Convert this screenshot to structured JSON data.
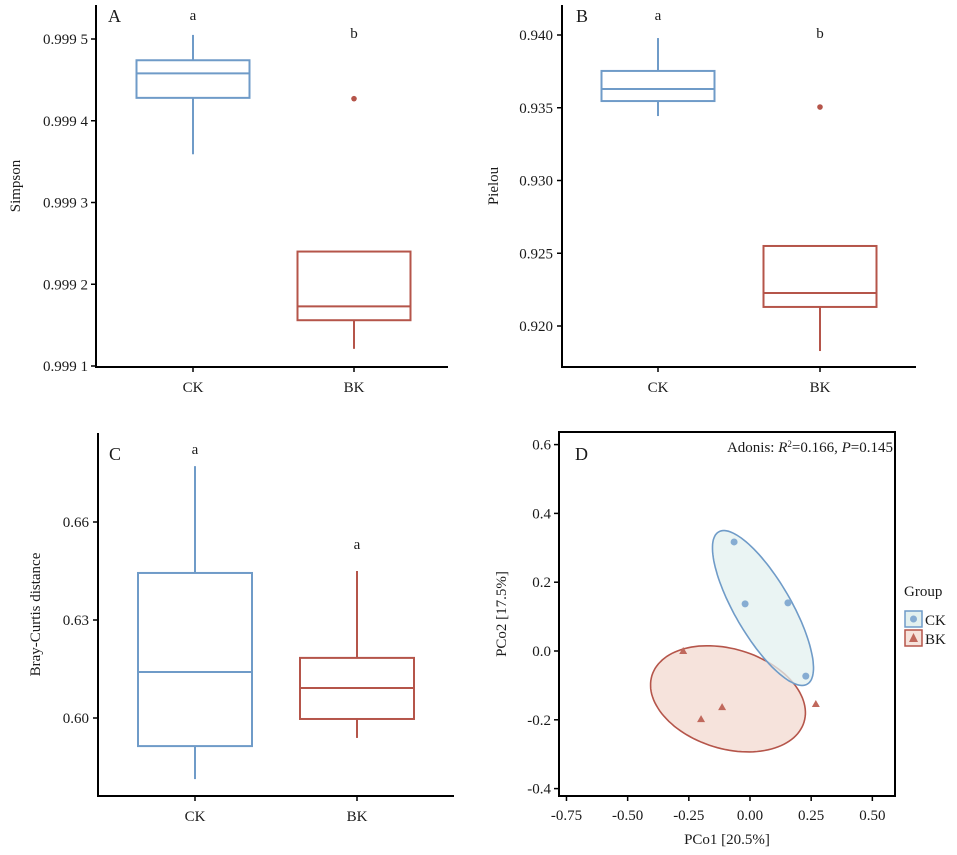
{
  "colors": {
    "CK": "#6f9bc8",
    "BK": "#b5554a",
    "CK_fill": "#e3f0ef",
    "BK_fill": "#f6e3dc",
    "CK_point": "#86acd2",
    "BK_point": "#c0685c"
  },
  "chart_data": [
    {
      "panel": "A",
      "type": "box",
      "ylabel": "Simpson",
      "xlabel": "",
      "categories": [
        "CK",
        "BK"
      ],
      "yticks": [
        0.9991,
        0.9992,
        0.9993,
        0.9994,
        0.9995
      ],
      "ytick_labels": [
        "0.999 1",
        "0.999 2",
        "0.999 3",
        "0.999 4",
        "0.999 5"
      ],
      "ylim": [
        0.99909,
        0.999542
      ],
      "boxes": [
        {
          "group": "CK",
          "whisker_low": 0.999359,
          "q1": 0.999428,
          "median": 0.999458,
          "q3": 0.999474,
          "whisker_high": 0.999505,
          "outliers": [],
          "sig": "a"
        },
        {
          "group": "BK",
          "whisker_low": 0.999121,
          "q1": 0.999156,
          "median": 0.999173,
          "q3": 0.99924,
          "whisker_high": 0.99924,
          "outliers": [
            0.999427
          ],
          "sig": "b"
        }
      ]
    },
    {
      "panel": "B",
      "type": "box",
      "ylabel": "Pielou",
      "xlabel": "",
      "categories": [
        "CK",
        "BK"
      ],
      "yticks": [
        0.92,
        0.925,
        0.93,
        0.935,
        0.94
      ],
      "ytick_labels": [
        "0.920",
        "0.925",
        "0.930",
        "0.935",
        "0.940"
      ],
      "ylim": [
        0.91717,
        0.9422
      ],
      "boxes": [
        {
          "group": "CK",
          "whisker_low": 0.93443,
          "q1": 0.93546,
          "median": 0.93629,
          "q3": 0.93753,
          "whisker_high": 0.93979,
          "outliers": [],
          "sig": "a"
        },
        {
          "group": "BK",
          "whisker_low": 0.91828,
          "q1": 0.92131,
          "median": 0.92227,
          "q3": 0.9255,
          "whisker_high": 0.9255,
          "outliers": [
            0.93505
          ],
          "sig": "b"
        }
      ]
    },
    {
      "panel": "C",
      "type": "box",
      "ylabel": "Bray-Curtis distance",
      "xlabel": "",
      "categories": [
        "CK",
        "BK"
      ],
      "yticks": [
        0.6,
        0.63,
        0.66
      ],
      "ytick_labels": [
        "0.60",
        "0.63",
        "0.66"
      ],
      "ylim": [
        0.5764,
        0.6872
      ],
      "boxes": [
        {
          "group": "CK",
          "whisker_low": 0.5813,
          "q1": 0.5914,
          "median": 0.6141,
          "q3": 0.6444,
          "whisker_high": 0.6771,
          "outliers": [],
          "sig": "a"
        },
        {
          "group": "BK",
          "whisker_low": 0.5939,
          "q1": 0.5997,
          "median": 0.6092,
          "q3": 0.6184,
          "whisker_high": 0.645,
          "outliers": [],
          "sig": "a"
        }
      ]
    },
    {
      "panel": "D",
      "type": "scatter",
      "title": "",
      "annotation": {
        "prefix": "Adonis: ",
        "r2_label": "R",
        "r2_sup": "2",
        "r2_value": "=0.166, ",
        "p_label": "P",
        "p_value": "=0.145"
      },
      "xlabel": "PCo1 [20.5%]",
      "ylabel": "PCo2 [17.5%]",
      "xticks": [
        -0.75,
        -0.5,
        -0.25,
        0.0,
        0.25,
        0.5
      ],
      "xtick_labels": [
        "-0.75",
        "-0.50",
        "-0.25",
        "0.00",
        "0.25",
        "0.50"
      ],
      "yticks": [
        -0.4,
        -0.2,
        0.0,
        0.2,
        0.4,
        0.6
      ],
      "ytick_labels": [
        "-0.4",
        "-0.2",
        "0.0",
        "0.2",
        "0.4",
        "0.6"
      ],
      "xlim": [
        -0.78,
        0.59
      ],
      "ylim": [
        -0.42,
        0.635
      ],
      "legend": {
        "title": "Group",
        "position": "right",
        "entries": [
          "CK",
          "BK"
        ]
      },
      "series": [
        {
          "name": "CK",
          "marker": "circle",
          "points": [
            [
              -0.065,
              0.317
            ],
            [
              -0.02,
              0.137
            ],
            [
              0.155,
              0.14
            ],
            [
              0.228,
              -0.073
            ]
          ],
          "ellipse": {
            "cx": 0.053,
            "cy": 0.125,
            "rx_major": 0.72,
            "ry_minor": 0.163,
            "angle_deg": 59.8
          }
        },
        {
          "name": "BK",
          "marker": "triangle",
          "points": [
            [
              -0.273,
              0.0
            ],
            [
              -0.114,
              -0.163
            ],
            [
              -0.2,
              -0.198
            ],
            [
              0.269,
              -0.154
            ]
          ],
          "ellipse": {
            "cx": -0.09,
            "cy": -0.139,
            "rx_major": 0.65,
            "ry_minor": 0.29,
            "angle_deg": 17
          }
        }
      ]
    }
  ]
}
